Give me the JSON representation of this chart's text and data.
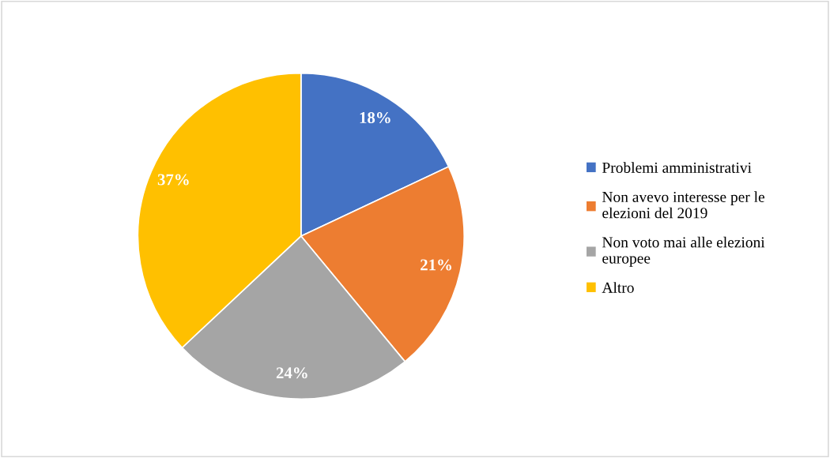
{
  "chart_data": {
    "type": "pie",
    "categories": [
      "Problemi amministrativi",
      "Non avevo interesse per le elezioni del 2019",
      "Non voto mai alle elezioni europee",
      "Altro"
    ],
    "values": [
      18,
      21,
      24,
      37
    ],
    "colors": [
      "#4472c4",
      "#ed7d31",
      "#a5a5a5",
      "#ffc000"
    ],
    "value_labels": [
      "18%",
      "21%",
      "24%",
      "37%"
    ],
    "legend": "right"
  }
}
